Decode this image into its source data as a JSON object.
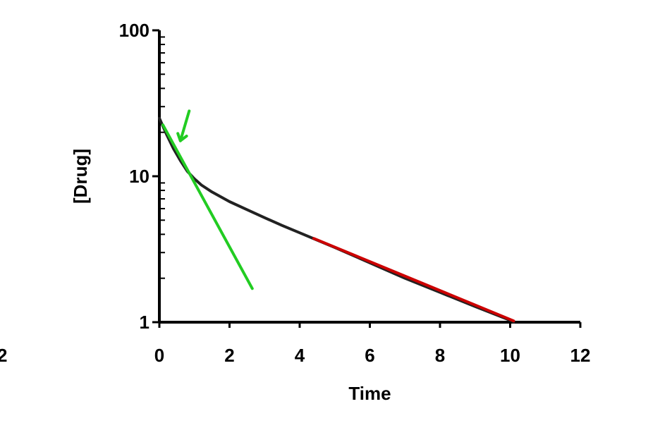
{
  "chart_data": {
    "type": "line",
    "title": "",
    "xlabel": "Time",
    "ylabel": "[Drug]",
    "xlim": [
      0,
      12
    ],
    "ylim": [
      1,
      100
    ],
    "yscale": "log",
    "grid": false,
    "x_ticks": [
      "0",
      "2",
      "4",
      "6",
      "8",
      "10",
      "12"
    ],
    "y_ticks": [
      "1",
      "10",
      "100"
    ],
    "left_clipped_label": "2",
    "colors": {
      "curve": "#222222",
      "alpha_line": "#22cc22",
      "beta_line": "#cc0000",
      "arrow": "#22cc22"
    },
    "series": [
      {
        "points": [
          [
            0,
            25
          ],
          [
            0.2,
            19.5
          ],
          [
            0.4,
            15.5
          ],
          [
            0.6,
            12.8
          ],
          [
            0.8,
            10.8
          ],
          [
            1.0,
            9.6
          ],
          [
            1.2,
            8.7
          ],
          [
            1.5,
            7.8
          ],
          [
            2.0,
            6.7
          ],
          [
            2.5,
            5.9
          ],
          [
            3.0,
            5.2
          ],
          [
            3.5,
            4.6
          ],
          [
            4.0,
            4.1
          ],
          [
            4.5,
            3.65
          ],
          [
            5,
            3.25
          ],
          [
            6,
            2.55
          ],
          [
            7,
            2.0
          ],
          [
            8,
            1.6
          ],
          [
            9,
            1.28
          ],
          [
            10,
            1.03
          ],
          [
            10.1,
            1.0
          ]
        ]
      },
      {
        "points": [
          [
            0.1,
            22.5
          ],
          [
            2.65,
            1.7
          ]
        ]
      },
      {
        "points": [
          [
            4.4,
            3.75
          ],
          [
            10.1,
            1.02
          ]
        ]
      }
    ],
    "annotations": [
      {
        "type": "arrow",
        "from": [
          0.85,
          28
        ],
        "to": [
          0.6,
          17.5
        ]
      }
    ]
  }
}
